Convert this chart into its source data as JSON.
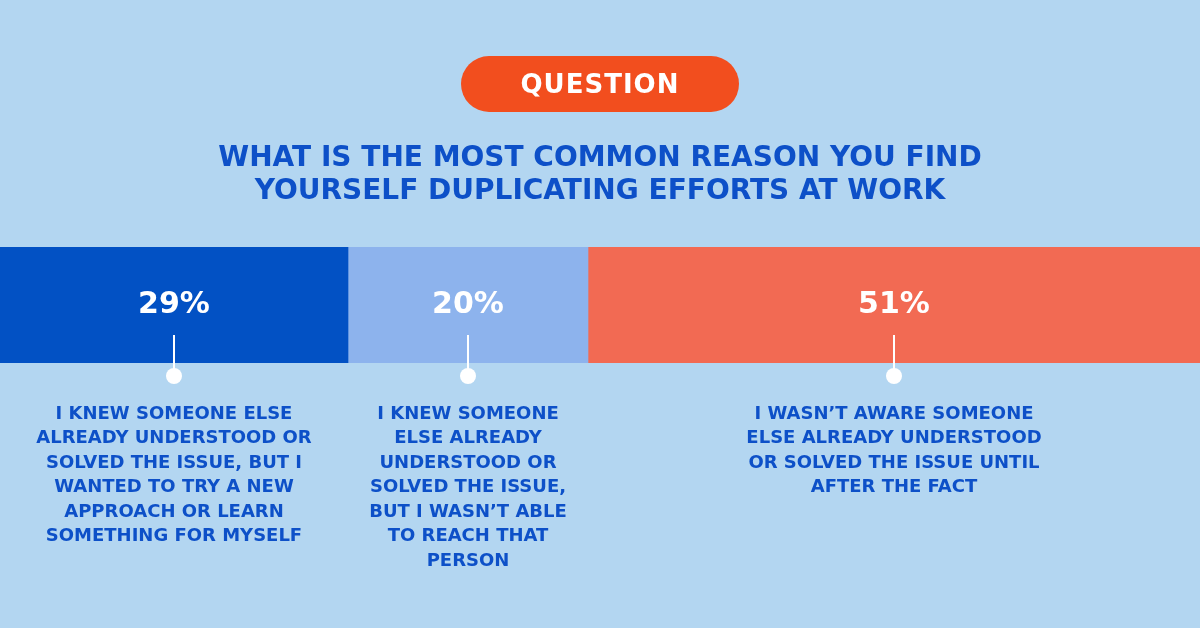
{
  "chart_data": {
    "type": "bar",
    "orientation": "horizontal",
    "stacked": true,
    "title": "WHAT IS THE MOST COMMON REASON YOU FIND YOURSELF DUPLICATING EFFORTS AT WORK",
    "annotations": [
      "QUESTION"
    ],
    "categories": [
      null
    ],
    "xlim": [
      0,
      100
    ],
    "tick_labels": false,
    "series": [
      {
        "name": "I KNEW SOMEONE ELSE ALREADY UNDERSTOOD OR SOLVED THE ISSUE, BUT I WANTED TO TRY A NEW APPROACH OR LEARN SOMETHING FOR MYSELF",
        "color": "#0251c4",
        "values": [
          29
        ],
        "value_labels": [
          "29%"
        ]
      },
      {
        "name": "I KNEW SOMEONE ELSE ALREADY UNDERSTOOD OR SOLVED THE ISSUE, BUT I WASN’T ABLE TO REACH THAT PERSON",
        "color": "#8db3ed",
        "values": [
          20
        ],
        "value_labels": [
          "20%"
        ]
      },
      {
        "name": "I WASN’T AWARE SOMEONE ELSE ALREADY UNDERSTOOD OR SOLVED THE ISSUE UNTIL AFTER THE FACT",
        "color": "#f26a53",
        "values": [
          51
        ],
        "value_labels": [
          "51%"
        ]
      }
    ]
  }
}
